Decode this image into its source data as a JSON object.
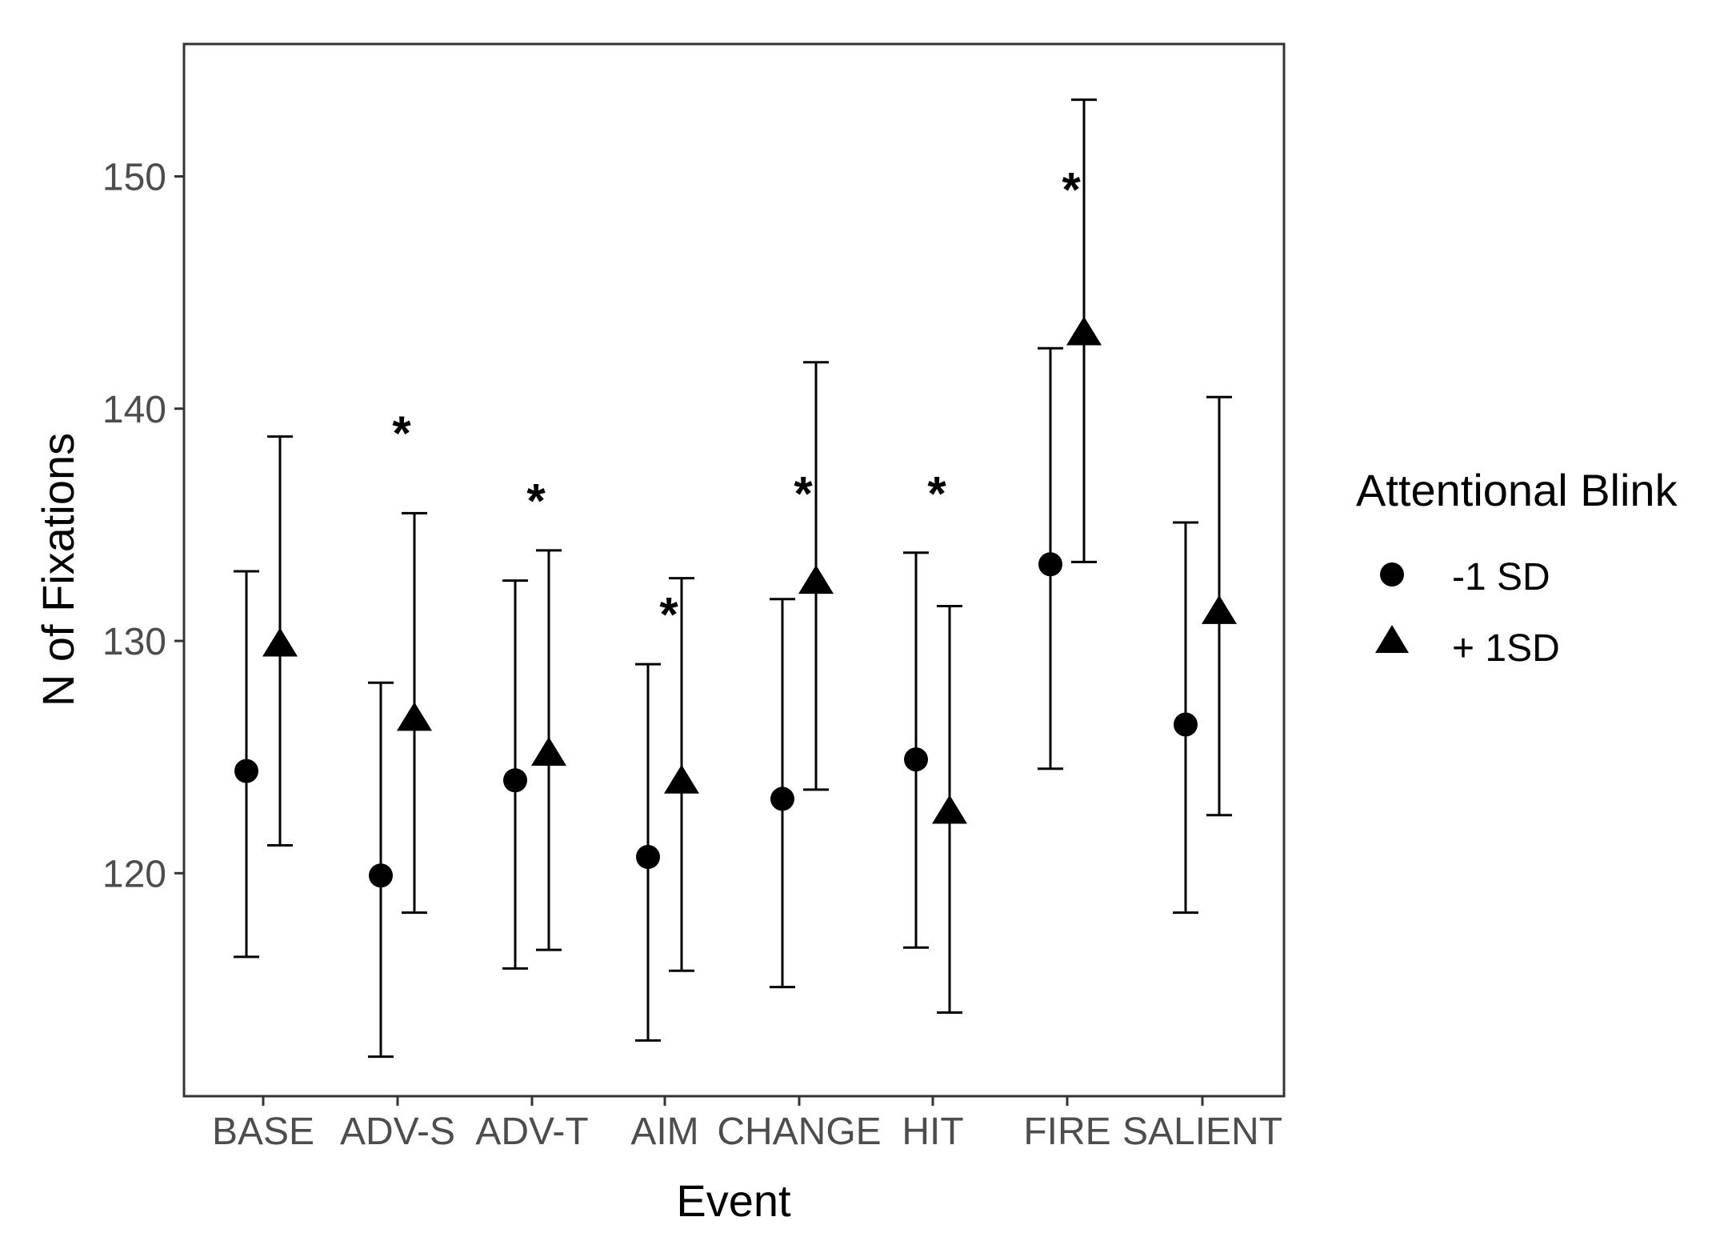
{
  "chart_data": {
    "type": "scatter",
    "variant": "point-with-error-bars",
    "categories": [
      "BASE",
      "ADV-S",
      "ADV-T",
      "AIM",
      "CHANGE",
      "HIT",
      "FIRE",
      "SALIENT"
    ],
    "xlabel": "Event",
    "ylabel": "N of Fixations",
    "ylim": [
      110.4,
      155.7
    ],
    "yticks": [
      120,
      130,
      140,
      150
    ],
    "grid": false,
    "legend": {
      "title": "Attentional Blink",
      "position": "right"
    },
    "series": [
      {
        "name": "-1 SD",
        "marker": "circle",
        "values": [
          124.4,
          119.9,
          124.0,
          120.7,
          123.2,
          124.9,
          133.3,
          126.4
        ],
        "lower": [
          116.4,
          112.1,
          115.9,
          112.8,
          115.1,
          116.8,
          124.5,
          118.3
        ],
        "upper": [
          133.0,
          128.2,
          132.6,
          129.0,
          131.8,
          133.8,
          142.6,
          135.1
        ]
      },
      {
        "name": "+ 1SD",
        "marker": "triangle",
        "values": [
          129.8,
          126.6,
          125.1,
          123.9,
          132.5,
          122.6,
          143.2,
          131.2
        ],
        "lower": [
          121.2,
          118.3,
          116.7,
          115.8,
          123.6,
          114.0,
          133.4,
          122.5
        ],
        "upper": [
          138.8,
          135.5,
          133.9,
          132.7,
          142.0,
          131.5,
          153.3,
          140.5
        ]
      }
    ],
    "annotations": [
      {
        "text": "*",
        "category": "ADV-S",
        "y": 139.4
      },
      {
        "text": "*",
        "category": "ADV-T",
        "y": 136.5
      },
      {
        "text": "*",
        "category": "AIM",
        "y": 131.6
      },
      {
        "text": "*",
        "category": "CHANGE",
        "y": 136.8
      },
      {
        "text": "*",
        "category": "HIT",
        "y": 136.8
      },
      {
        "text": "*",
        "category": "FIRE",
        "y": 149.9
      }
    ]
  }
}
